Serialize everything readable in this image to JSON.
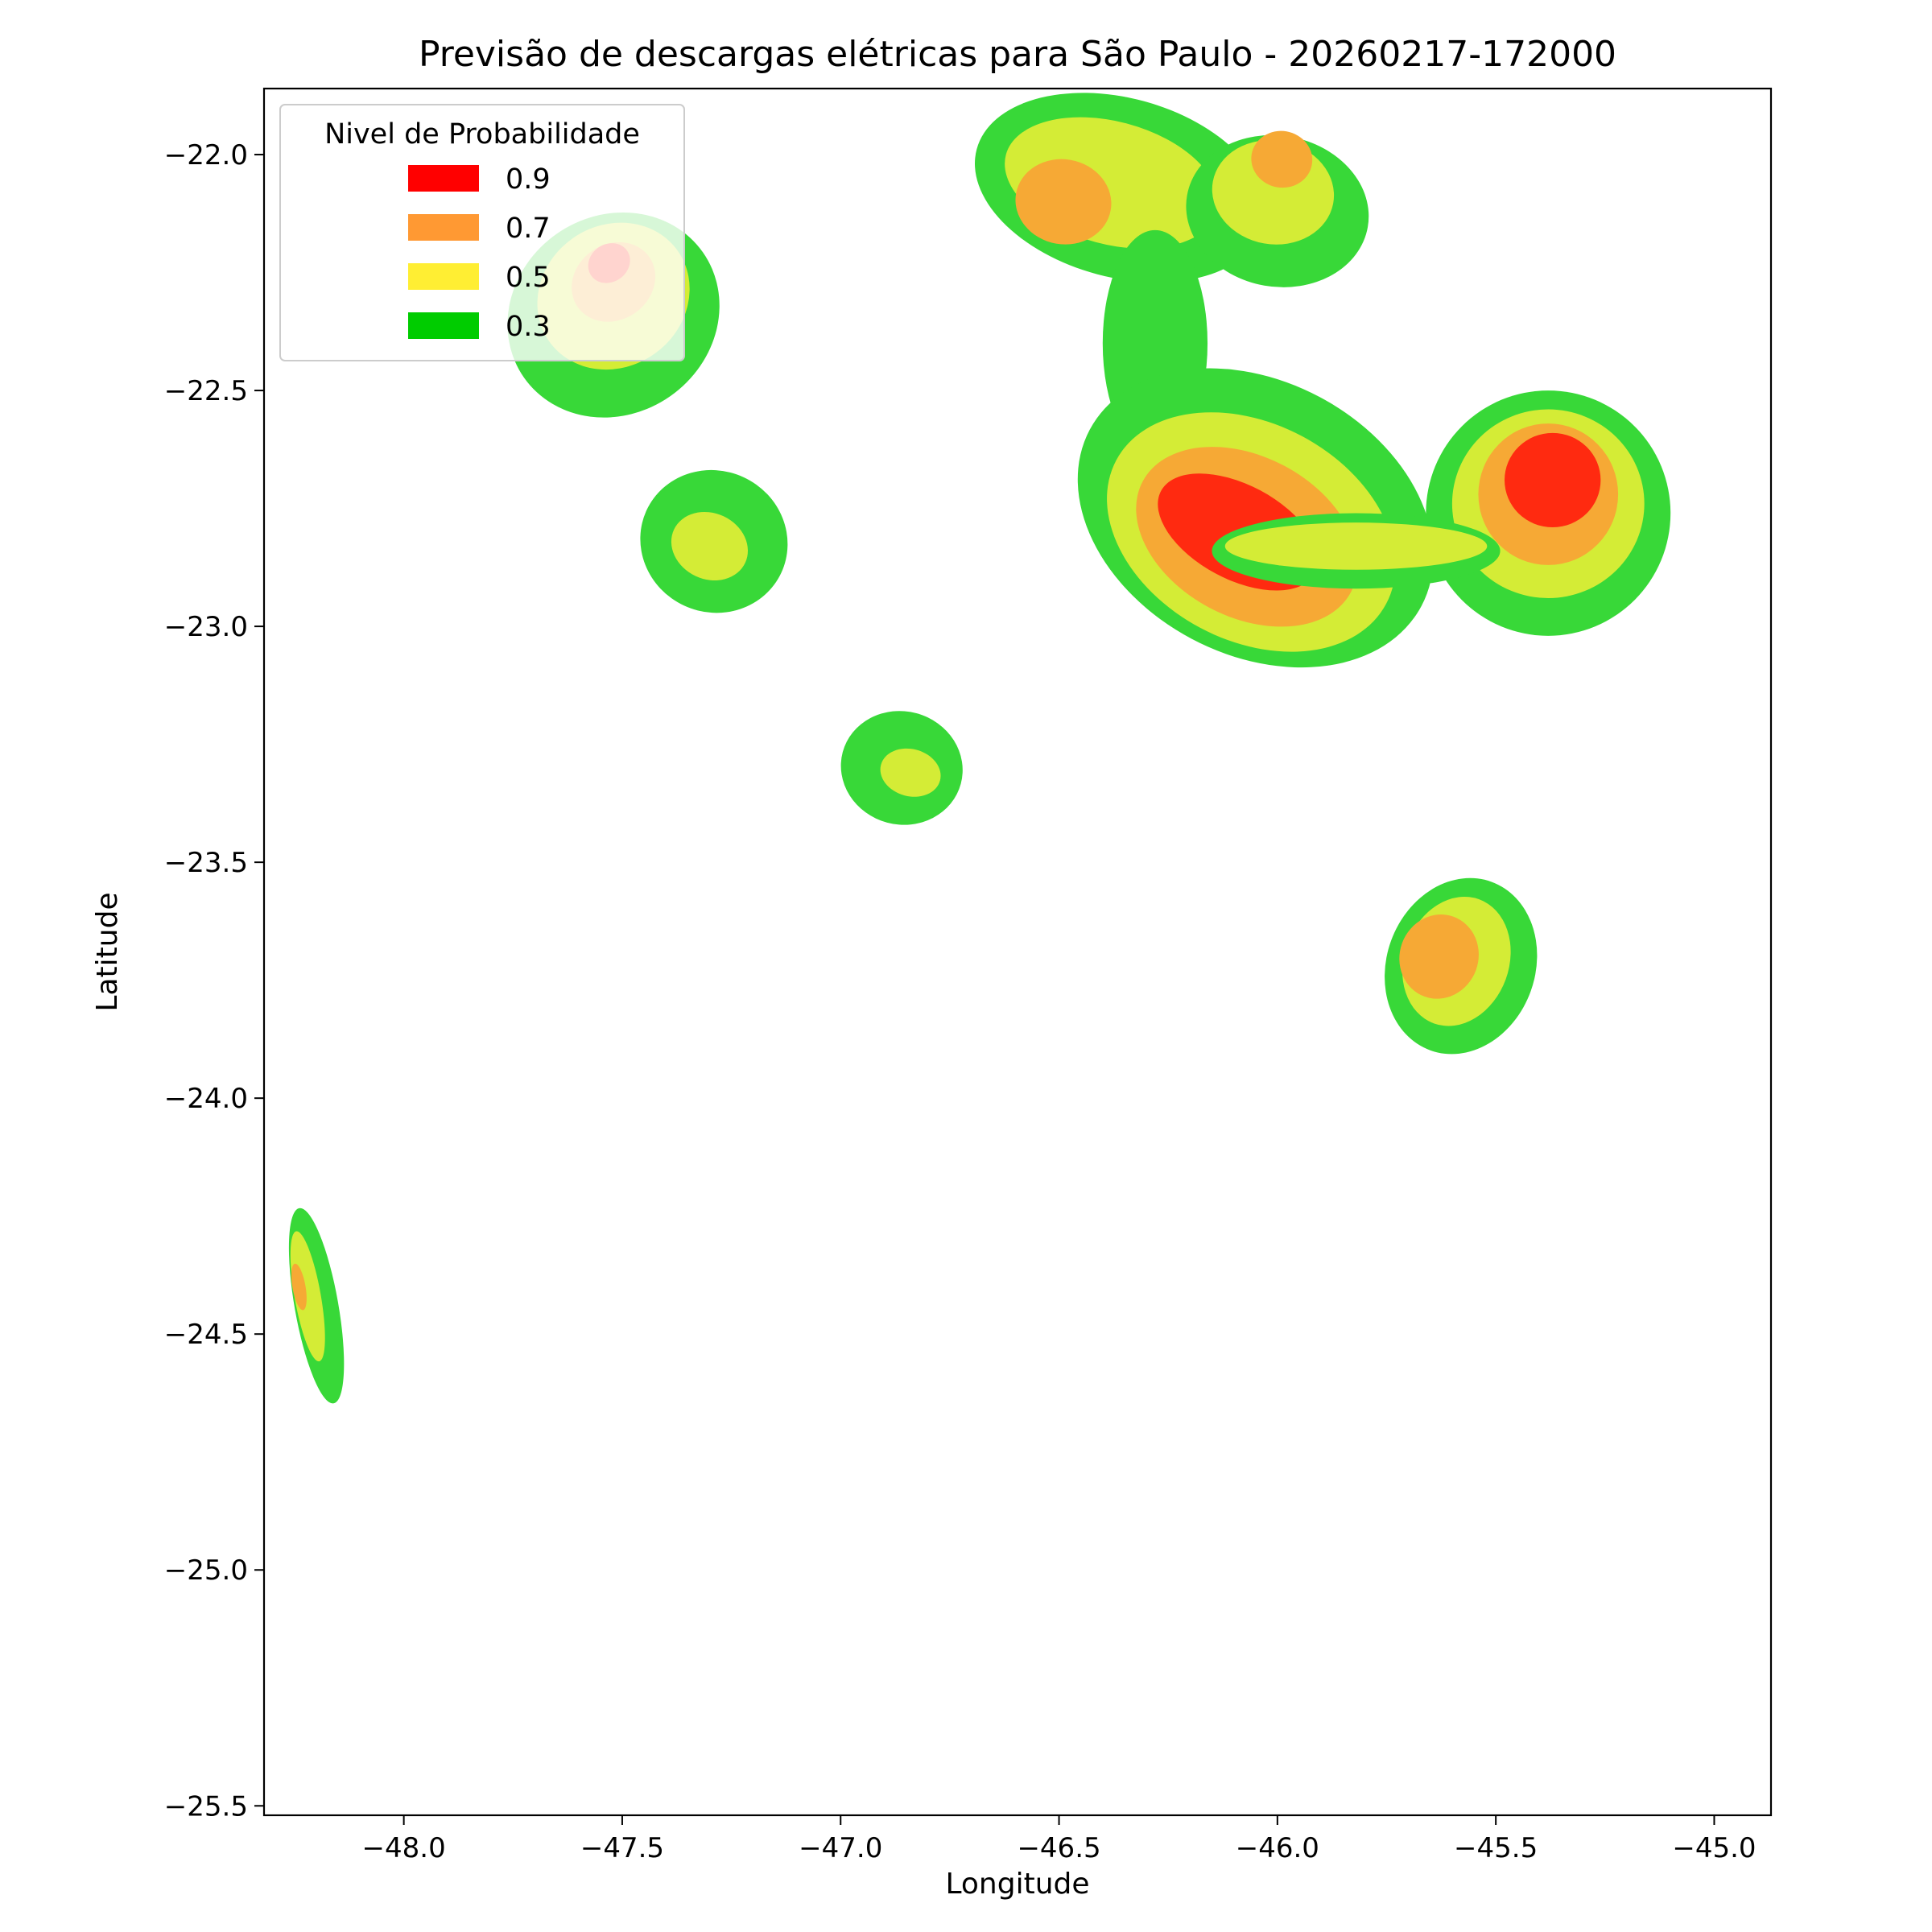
{
  "chart_data": {
    "type": "heatmap",
    "title": "Previsão de descargas elétricas para São Paulo - 20260217-172000",
    "xlabel": "Longitude",
    "ylabel": "Latitude",
    "xlim": [
      -48.32,
      -44.87
    ],
    "ylim": [
      -25.52,
      -21.86
    ],
    "xticks": [
      -48.0,
      -47.5,
      -47.0,
      -46.5,
      -46.0,
      -45.5,
      -45.0
    ],
    "yticks": [
      -22.0,
      -22.5,
      -23.0,
      -23.5,
      -24.0,
      -24.5,
      -25.0,
      -25.5
    ],
    "xtick_labels": [
      "−48.0",
      "−47.5",
      "−47.0",
      "−46.5",
      "−46.0",
      "−45.5",
      "−45.0"
    ],
    "ytick_labels": [
      "−22.0",
      "−22.5",
      "−23.0",
      "−23.5",
      "−24.0",
      "−24.5",
      "−25.0",
      "−25.5"
    ],
    "legend": {
      "title": "Nivel de Probabilidade",
      "location": "upper-left",
      "entries": [
        {
          "label": "0.9",
          "color": "#ff0000"
        },
        {
          "label": "0.7",
          "color": "#ff9933"
        },
        {
          "label": "0.5",
          "color": "#ffee33"
        },
        {
          "label": "0.3",
          "color": "#00cc00"
        }
      ]
    },
    "fill_colors": {
      "0.3": "#38d838",
      "0.5": "#d4ec36",
      "0.7": "#f6a935",
      "0.9": "#ff2a10"
    },
    "cells": [
      {
        "name": "cell-1-level-0.3",
        "level": "0.3",
        "center": [
          -47.52,
          -22.34
        ],
        "rx": 0.25,
        "ry": 0.21,
        "rot": -35
      },
      {
        "name": "cell-1-level-0.5",
        "level": "0.5",
        "center": [
          -47.52,
          -22.3
        ],
        "rx": 0.18,
        "ry": 0.15,
        "rot": -35
      },
      {
        "name": "cell-1-level-0.7",
        "level": "0.7",
        "center": [
          -47.52,
          -22.27
        ],
        "rx": 0.1,
        "ry": 0.08,
        "rot": -35
      },
      {
        "name": "cell-1-level-0.9",
        "level": "0.9",
        "center": [
          -47.53,
          -22.23
        ],
        "rx": 0.05,
        "ry": 0.04,
        "rot": -35
      },
      {
        "name": "cell-2-level-0.3",
        "level": "0.3",
        "center": [
          -47.29,
          -22.82
        ],
        "rx": 0.17,
        "ry": 0.15,
        "rot": 25
      },
      {
        "name": "cell-2-level-0.5",
        "level": "0.5",
        "center": [
          -47.3,
          -22.83
        ],
        "rx": 0.09,
        "ry": 0.07,
        "rot": 25
      },
      {
        "name": "cell-3-level-0.3",
        "level": "0.3",
        "center": [
          -46.86,
          -23.3
        ],
        "rx": 0.14,
        "ry": 0.12,
        "rot": 15
      },
      {
        "name": "cell-3-level-0.5",
        "level": "0.5",
        "center": [
          -46.84,
          -23.31
        ],
        "rx": 0.07,
        "ry": 0.05,
        "rot": 15
      },
      {
        "name": "cell-4-level-0.3",
        "level": "0.3",
        "center": [
          -46.36,
          -22.07
        ],
        "rx": 0.34,
        "ry": 0.19,
        "rot": 15
      },
      {
        "name": "cell-4-level-0.5",
        "level": "0.5",
        "center": [
          -46.38,
          -22.06
        ],
        "rx": 0.25,
        "ry": 0.13,
        "rot": 15
      },
      {
        "name": "cell-4-level-0.7",
        "level": "0.7",
        "center": [
          -46.49,
          -22.1
        ],
        "rx": 0.11,
        "ry": 0.09,
        "rot": 10
      },
      {
        "name": "cell-5-level-0.3",
        "level": "0.3",
        "center": [
          -46.0,
          -22.12
        ],
        "rx": 0.21,
        "ry": 0.16,
        "rot": 10
      },
      {
        "name": "cell-5-level-0.5",
        "level": "0.5",
        "center": [
          -46.01,
          -22.08
        ],
        "rx": 0.14,
        "ry": 0.11,
        "rot": 10
      },
      {
        "name": "cell-5-level-0.7",
        "level": "0.7",
        "center": [
          -45.99,
          -22.01
        ],
        "rx": 0.07,
        "ry": 0.06,
        "rot": 10
      },
      {
        "name": "cell-6-level-0.3",
        "level": "0.3",
        "center": [
          -46.28,
          -22.4
        ],
        "rx": 0.12,
        "ry": 0.24,
        "rot": 0
      },
      {
        "name": "cell-7-level-0.3",
        "level": "0.3",
        "center": [
          -46.05,
          -22.77
        ],
        "rx": 0.43,
        "ry": 0.29,
        "rot": 28
      },
      {
        "name": "cell-7-level-0.5",
        "level": "0.5",
        "center": [
          -46.06,
          -22.8
        ],
        "rx": 0.35,
        "ry": 0.23,
        "rot": 28
      },
      {
        "name": "cell-7-level-0.7",
        "level": "0.7",
        "center": [
          -46.07,
          -22.81
        ],
        "rx": 0.27,
        "ry": 0.17,
        "rot": 28
      },
      {
        "name": "cell-7-level-0.9",
        "level": "0.9",
        "center": [
          -46.09,
          -22.8
        ],
        "rx": 0.2,
        "ry": 0.1,
        "rot": 28
      },
      {
        "name": "cell-8-level-0.3",
        "level": "0.3",
        "center": [
          -45.38,
          -22.76
        ],
        "rx": 0.28,
        "ry": 0.26,
        "rot": 0
      },
      {
        "name": "cell-8-level-0.5",
        "level": "0.5",
        "center": [
          -45.38,
          -22.74
        ],
        "rx": 0.22,
        "ry": 0.2,
        "rot": 0
      },
      {
        "name": "cell-8-level-0.7",
        "level": "0.7",
        "center": [
          -45.38,
          -22.72
        ],
        "rx": 0.16,
        "ry": 0.15,
        "rot": 0
      },
      {
        "name": "cell-8-level-0.9",
        "level": "0.9",
        "center": [
          -45.37,
          -22.69
        ],
        "rx": 0.11,
        "ry": 0.1,
        "rot": 0
      },
      {
        "name": "cell-9-level-0.3",
        "level": "0.3",
        "center": [
          -45.82,
          -22.84
        ],
        "rx": 0.33,
        "ry": 0.08,
        "rot": 0
      },
      {
        "name": "cell-9-level-0.5",
        "level": "0.5",
        "center": [
          -45.82,
          -22.83
        ],
        "rx": 0.3,
        "ry": 0.05,
        "rot": 0
      },
      {
        "name": "cell-10-level-0.3",
        "level": "0.3",
        "center": [
          -45.58,
          -23.72
        ],
        "rx": 0.17,
        "ry": 0.19,
        "rot": 20
      },
      {
        "name": "cell-10-level-0.5",
        "level": "0.5",
        "center": [
          -45.59,
          -23.71
        ],
        "rx": 0.12,
        "ry": 0.14,
        "rot": 20
      },
      {
        "name": "cell-10-level-0.7",
        "level": "0.7",
        "center": [
          -45.63,
          -23.7
        ],
        "rx": 0.09,
        "ry": 0.09,
        "rot": 20
      },
      {
        "name": "cell-11-level-0.3",
        "level": "0.3",
        "center": [
          -48.2,
          -24.44
        ],
        "rx": 0.05,
        "ry": 0.21,
        "rot": -10
      },
      {
        "name": "cell-11-level-0.5",
        "level": "0.5",
        "center": [
          -48.22,
          -24.42
        ],
        "rx": 0.03,
        "ry": 0.14,
        "rot": -10
      },
      {
        "name": "cell-11-level-0.7",
        "level": "0.7",
        "center": [
          -48.24,
          -24.4
        ],
        "rx": 0.015,
        "ry": 0.05,
        "rot": -10
      }
    ]
  }
}
